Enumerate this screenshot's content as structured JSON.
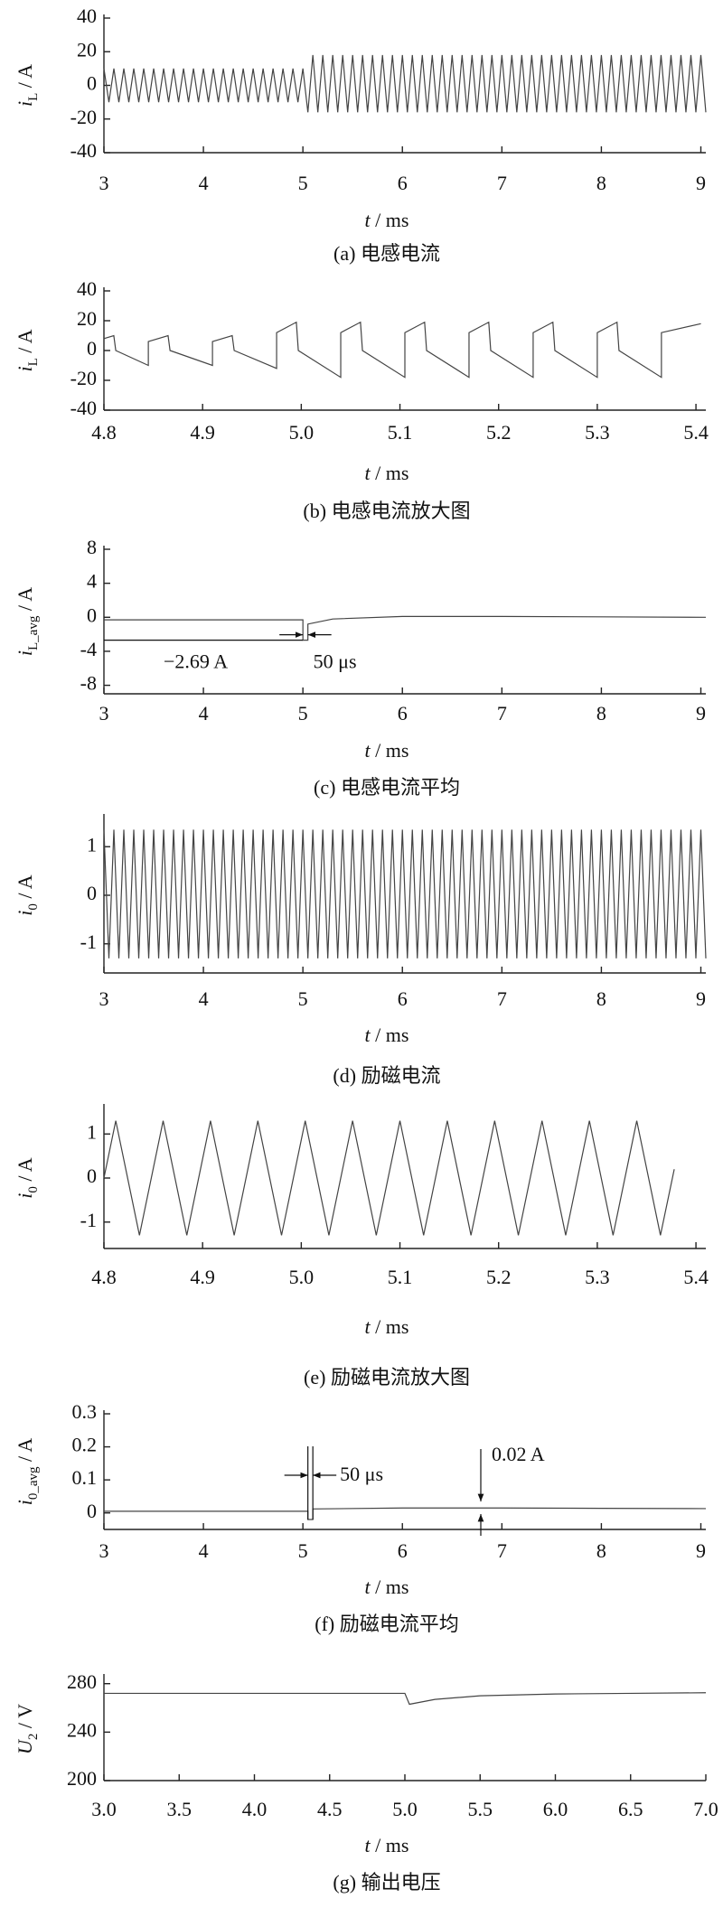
{
  "chart_data": [
    {
      "type": "line",
      "caption": "(a) 电感电流",
      "ylabel": [
        "i",
        "L",
        " / A"
      ],
      "xlabel": [
        "t",
        " / ms"
      ],
      "color": "#444444",
      "xlim": [
        3,
        9.05
      ],
      "ylim": [
        -40,
        40
      ],
      "xticks": [
        3,
        4,
        5,
        6,
        7,
        8,
        9
      ],
      "yticks": [
        -40,
        -20,
        0,
        20,
        40
      ],
      "x": [
        3,
        3.05,
        3.1,
        3.15,
        3.2,
        3.25,
        3.3,
        3.35,
        3.4,
        3.45,
        3.5,
        3.55,
        3.6,
        3.65,
        3.7,
        3.75,
        3.8,
        3.85,
        3.9,
        3.95,
        4,
        4.05,
        4.1,
        4.15,
        4.2,
        4.25,
        4.3,
        4.35,
        4.4,
        4.45,
        4.5,
        4.55,
        4.6,
        4.65,
        4.7,
        4.75,
        4.8,
        4.85,
        4.9,
        4.95,
        5,
        5.05,
        5.1,
        5.15,
        5.2,
        5.25,
        5.3,
        5.35,
        5.4,
        5.45,
        5.5,
        5.55,
        5.6,
        5.65,
        5.7,
        5.75,
        5.8,
        5.85,
        5.9,
        5.95,
        6,
        6.05,
        6.1,
        6.15,
        6.2,
        6.25,
        6.3,
        6.35,
        6.4,
        6.45,
        6.5,
        6.55,
        6.6,
        6.65,
        6.7,
        6.75,
        6.8,
        6.85,
        6.9,
        6.95,
        7,
        7.05,
        7.1,
        7.15,
        7.2,
        7.25,
        7.3,
        7.35,
        7.4,
        7.45,
        7.5,
        7.55,
        7.6,
        7.65,
        7.7,
        7.75,
        7.8,
        7.85,
        7.9,
        7.95,
        8,
        8.05,
        8.1,
        8.15,
        8.2,
        8.25,
        8.3,
        8.35,
        8.4,
        8.45,
        8.5,
        8.55,
        8.6,
        8.65,
        8.7,
        8.75,
        8.8,
        8.85,
        8.9,
        8.95,
        9,
        9.05
      ],
      "values": [
        10,
        -10,
        10,
        -10,
        10,
        -10,
        10,
        -10,
        10,
        -10,
        10,
        -10,
        10,
        -10,
        10,
        -10,
        10,
        -10,
        10,
        -10,
        10,
        -10,
        10,
        -10,
        10,
        -10,
        10,
        -10,
        10,
        -10,
        10,
        -10,
        10,
        -10,
        10,
        -10,
        10,
        -10,
        10,
        -10,
        10,
        -16,
        18,
        -16,
        18,
        -16,
        18,
        -16,
        18,
        -16,
        18,
        -16,
        18,
        -16,
        18,
        -16,
        18,
        -16,
        18,
        -16,
        18,
        -16,
        18,
        -16,
        18,
        -16,
        18,
        -16,
        18,
        -16,
        18,
        -16,
        18,
        -16,
        18,
        -16,
        18,
        -16,
        18,
        -16,
        18,
        -16,
        18,
        -16,
        18,
        -16,
        18,
        -16,
        18,
        -16,
        18,
        -16,
        18,
        -16,
        18,
        -16,
        18,
        -16,
        18,
        -16,
        18,
        -16,
        18,
        -16,
        18,
        -16,
        18,
        -16,
        18,
        -16,
        18,
        -16,
        18,
        -16,
        18,
        -16,
        18,
        -16,
        18,
        -16,
        18,
        -16
      ]
    },
    {
      "type": "line",
      "caption": "(b) 电感电流放大图",
      "ylabel": [
        "i",
        "L",
        " / A"
      ],
      "xlabel": [
        "t",
        " / ms"
      ],
      "color": "#444444",
      "xlim": [
        4.8,
        5.41
      ],
      "ylim": [
        -40,
        40
      ],
      "xticks": [
        4.8,
        4.9,
        {
          "value": 5,
          "label": "5.0"
        },
        5.1,
        5.2,
        5.3,
        5.4
      ],
      "yticks": [
        -40,
        -20,
        0,
        20,
        40
      ],
      "x": [
        4.8,
        4.81,
        4.812,
        4.845,
        4.845,
        4.865,
        4.867,
        4.91,
        4.91,
        4.93,
        4.932,
        4.975,
        4.975,
        4.995,
        4.997,
        5.04,
        5.04,
        5.06,
        5.062,
        5.105,
        5.105,
        5.125,
        5.127,
        5.17,
        5.17,
        5.19,
        5.192,
        5.235,
        5.235,
        5.255,
        5.257,
        5.3,
        5.3,
        5.32,
        5.322,
        5.365,
        5.365,
        5.405
      ],
      "values": [
        8,
        10,
        0,
        -10,
        6,
        10,
        0,
        -10,
        6,
        10,
        0,
        -12,
        12,
        19,
        0,
        -18,
        12,
        19,
        0,
        -18,
        12,
        19,
        0,
        -18,
        12,
        19,
        0,
        -18,
        12,
        19,
        0,
        -18,
        12,
        19,
        0,
        -18,
        12,
        18
      ]
    },
    {
      "type": "line",
      "caption": "(c) 电感电流平均",
      "ylabel": [
        "i",
        "L_avg",
        " / A"
      ],
      "xlabel": [
        "t",
        " / ms"
      ],
      "color": "#444444",
      "xlim": [
        3,
        9.05
      ],
      "ylim": [
        -9,
        8
      ],
      "xticks": [
        3,
        4,
        5,
        6,
        7,
        8,
        9
      ],
      "yticks": [
        -8,
        -4,
        0,
        4,
        8
      ],
      "x": [
        3,
        5,
        5,
        5.05,
        5.05,
        5.3,
        6,
        7,
        8,
        9.05
      ],
      "values": [
        -0.3,
        -0.3,
        -2.69,
        -2.69,
        -0.8,
        -0.2,
        0.1,
        0.1,
        0.05,
        0
      ],
      "annotations": [
        "−2.69 A",
        "50 μs"
      ]
    },
    {
      "type": "line",
      "caption": "(d) 励磁电流",
      "ylabel": [
        "i",
        "0",
        " / A"
      ],
      "xlabel": [
        "t",
        " / ms"
      ],
      "color": "#444444",
      "xlim": [
        3,
        9.05
      ],
      "ylim": [
        -1.6,
        1.6
      ],
      "xticks": [
        3,
        4,
        5,
        6,
        7,
        8,
        9
      ],
      "yticks": [
        -1,
        0,
        1
      ],
      "x": [
        3,
        3.05,
        3.1,
        3.15,
        3.2,
        3.25,
        3.3,
        3.35,
        3.4,
        3.45,
        3.5,
        3.55,
        3.6,
        3.65,
        3.7,
        3.75,
        3.8,
        3.85,
        3.9,
        3.95,
        4,
        4.05,
        4.1,
        4.15,
        4.2,
        4.25,
        4.3,
        4.35,
        4.4,
        4.45,
        4.5,
        4.55,
        4.6,
        4.65,
        4.7,
        4.75,
        4.8,
        4.85,
        4.9,
        4.95,
        5,
        5.05,
        5.1,
        5.15,
        5.2,
        5.25,
        5.3,
        5.35,
        5.4,
        5.45,
        5.5,
        5.55,
        5.6,
        5.65,
        5.7,
        5.75,
        5.8,
        5.85,
        5.9,
        5.95,
        6,
        6.05,
        6.1,
        6.15,
        6.2,
        6.25,
        6.3,
        6.35,
        6.4,
        6.45,
        6.5,
        6.55,
        6.6,
        6.65,
        6.7,
        6.75,
        6.8,
        6.85,
        6.9,
        6.95,
        7,
        7.05,
        7.1,
        7.15,
        7.2,
        7.25,
        7.3,
        7.35,
        7.4,
        7.45,
        7.5,
        7.55,
        7.6,
        7.65,
        7.7,
        7.75,
        7.8,
        7.85,
        7.9,
        7.95,
        8,
        8.05,
        8.1,
        8.15,
        8.2,
        8.25,
        8.3,
        8.35,
        8.4,
        8.45,
        8.5,
        8.55,
        8.6,
        8.65,
        8.7,
        8.75,
        8.8,
        8.85,
        8.9,
        8.95,
        9,
        9.05
      ],
      "values": [
        1.35,
        -1.3,
        1.35,
        -1.3,
        1.35,
        -1.3,
        1.35,
        -1.3,
        1.35,
        -1.3,
        1.35,
        -1.3,
        1.35,
        -1.3,
        1.35,
        -1.3,
        1.35,
        -1.3,
        1.35,
        -1.3,
        1.35,
        -1.3,
        1.35,
        -1.3,
        1.35,
        -1.3,
        1.35,
        -1.3,
        1.35,
        -1.3,
        1.35,
        -1.3,
        1.35,
        -1.3,
        1.35,
        -1.3,
        1.35,
        -1.3,
        1.35,
        -1.3,
        1.35,
        -1.3,
        1.35,
        -1.3,
        1.35,
        -1.3,
        1.35,
        -1.3,
        1.35,
        -1.3,
        1.35,
        -1.3,
        1.35,
        -1.3,
        1.35,
        -1.3,
        1.35,
        -1.3,
        1.35,
        -1.3,
        1.35,
        -1.3,
        1.35,
        -1.3,
        1.35,
        -1.3,
        1.35,
        -1.3,
        1.35,
        -1.3,
        1.35,
        -1.3,
        1.35,
        -1.3,
        1.35,
        -1.3,
        1.35,
        -1.3,
        1.35,
        -1.3,
        1.35,
        -1.3,
        1.35,
        -1.3,
        1.35,
        -1.3,
        1.35,
        -1.3,
        1.35,
        -1.3,
        1.35,
        -1.3,
        1.35,
        -1.3,
        1.35,
        -1.3,
        1.35,
        -1.3,
        1.35,
        -1.3,
        1.35,
        -1.3,
        1.35,
        -1.3,
        1.35,
        -1.3,
        1.35,
        -1.3,
        1.35,
        -1.3,
        1.35,
        -1.3,
        1.35,
        -1.3,
        1.35,
        -1.3,
        1.35,
        -1.3,
        1.35,
        -1.3,
        1.35,
        -1.3
      ]
    },
    {
      "type": "line",
      "caption": "(e) 励磁电流放大图",
      "ylabel": [
        "i",
        "0",
        " / A"
      ],
      "xlabel": [
        "t",
        " / ms"
      ],
      "color": "#444444",
      "xlim": [
        4.8,
        5.41
      ],
      "ylim": [
        -1.6,
        1.6
      ],
      "xticks": [
        4.8,
        4.9,
        {
          "value": 5,
          "label": "5.0"
        },
        5.1,
        5.2,
        5.3,
        5.4
      ],
      "yticks": [
        -1,
        0,
        1
      ],
      "x": [
        4.8,
        4.812,
        4.836,
        4.86,
        4.884,
        4.908,
        4.932,
        4.956,
        4.98,
        5.004,
        5.028,
        5.052,
        5.076,
        5.1,
        5.124,
        5.148,
        5.172,
        5.196,
        5.22,
        5.244,
        5.268,
        5.292,
        5.316,
        5.34,
        5.364,
        5.378
      ],
      "values": [
        0,
        1.3,
        -1.3,
        1.3,
        -1.3,
        1.3,
        -1.3,
        1.3,
        -1.3,
        1.3,
        -1.3,
        1.3,
        -1.3,
        1.3,
        -1.3,
        1.3,
        -1.3,
        1.3,
        -1.3,
        1.3,
        -1.3,
        1.3,
        -1.3,
        1.3,
        -1.3,
        0.2
      ]
    },
    {
      "type": "line",
      "caption": "(f) 励磁电流平均",
      "ylabel": [
        "i",
        "0_avg",
        " / A"
      ],
      "xlabel": [
        "t",
        " / ms"
      ],
      "color": "#444444",
      "xlim": [
        3,
        9.05
      ],
      "ylim": [
        -0.05,
        0.3
      ],
      "xticks": [
        3,
        4,
        5,
        6,
        7,
        8,
        9
      ],
      "yticks": [
        0,
        0.1,
        0.2,
        0.3
      ],
      "x": [
        3,
        5.05,
        5.05,
        5.1,
        5.1,
        6,
        7,
        8,
        9.05
      ],
      "values": [
        0.005,
        0.005,
        -0.02,
        -0.02,
        0.012,
        0.015,
        0.015,
        0.014,
        0.013
      ],
      "annotations": [
        "50 μs",
        "0.02 A"
      ]
    },
    {
      "type": "line",
      "caption": "(g) 输出电压",
      "ylabel": [
        "U",
        "2",
        " / V"
      ],
      "xlabel": [
        "t",
        " / ms"
      ],
      "color": "#444444",
      "xlim": [
        3,
        7
      ],
      "ylim": [
        200,
        285
      ],
      "xticks": [
        {
          "value": 3,
          "label": "3.0"
        },
        3.5,
        {
          "value": 4,
          "label": "4.0"
        },
        4.5,
        {
          "value": 5,
          "label": "5.0"
        },
        5.5,
        {
          "value": 6,
          "label": "6.0"
        },
        6.5,
        {
          "value": 7,
          "label": "7.0"
        }
      ],
      "yticks": [
        200,
        240,
        280
      ],
      "x": [
        3,
        4,
        5,
        5.03,
        5.2,
        5.5,
        6,
        6.5,
        7
      ],
      "values": [
        272,
        272,
        272,
        263,
        267,
        270,
        271.5,
        272,
        272.5
      ]
    }
  ]
}
